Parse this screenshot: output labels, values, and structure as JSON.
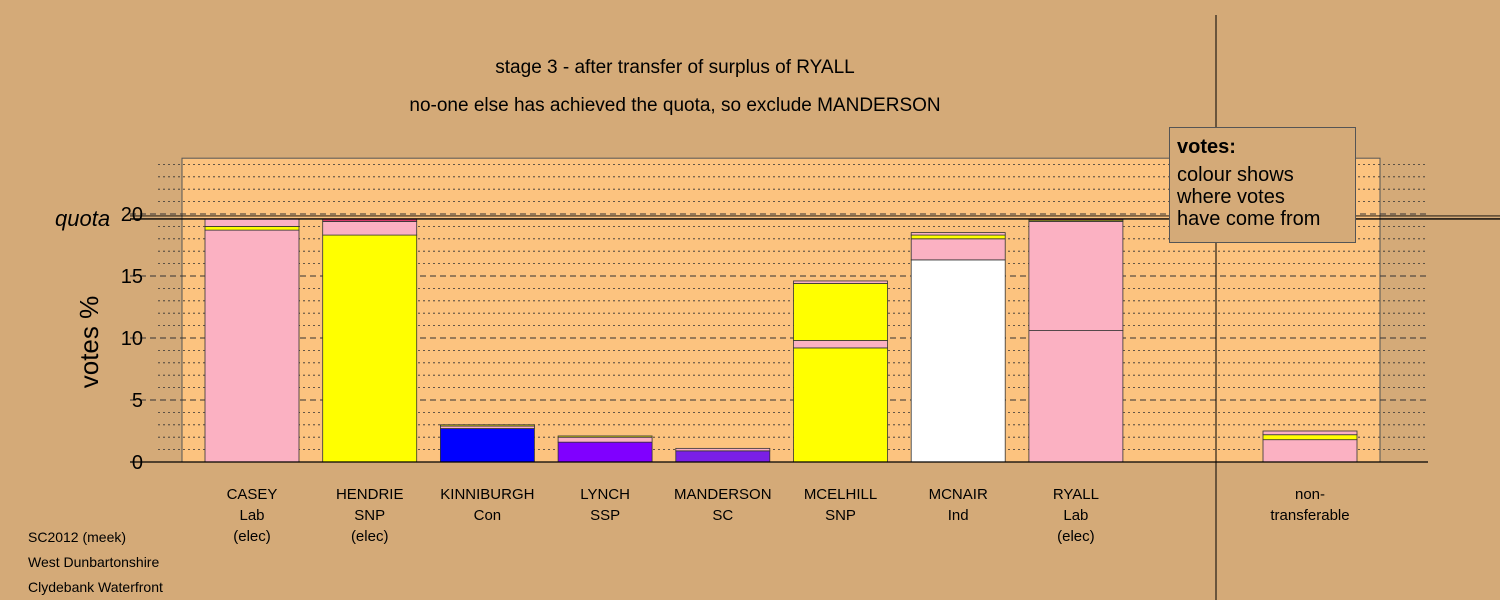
{
  "titles": {
    "line1": "stage 3 - after transfer of surplus of RYALL",
    "line2": "no-one else has achieved the quota, so exclude MANDERSON"
  },
  "legend": {
    "title": "votes:",
    "lines": [
      "colour shows",
      "where votes",
      "have come from"
    ]
  },
  "footer": [
    "SC2012 (meek)",
    "West Dunbartonshire",
    "Clydebank Waterfront"
  ],
  "colors": {
    "background": "#d4aa78",
    "plot_background": "#fcc37f",
    "Lab": "#fbb1c2",
    "SNP": "#ffff00",
    "Con": "#0000ff",
    "SSP": "#8000ff",
    "SC": "#7a1fe6",
    "Ind": "#ffffff",
    "Lab_dark": "#d93a6a"
  },
  "chart_data": {
    "type": "bar",
    "stacked": true,
    "ylabel": "votes %",
    "ylim": [
      0,
      24.5
    ],
    "yticks": [
      0,
      5,
      10,
      15,
      20
    ],
    "quota": {
      "label": "quota",
      "value": 19.6
    },
    "grid": "dotted minor, dashed major",
    "candidates": [
      {
        "lines": [
          "CASEY",
          "Lab",
          "(elec)"
        ],
        "total": 19.6,
        "segments": [
          {
            "source": "Lab",
            "value": 18.7
          },
          {
            "source": "SNP",
            "value": 0.3
          },
          {
            "source": "Lab",
            "value": 0.6
          }
        ]
      },
      {
        "lines": [
          "HENDRIE",
          "SNP",
          "(elec)"
        ],
        "total": 19.6,
        "segments": [
          {
            "source": "SNP",
            "value": 18.3
          },
          {
            "source": "Lab",
            "value": 1.1
          },
          {
            "source": "Lab_dark",
            "value": 0.2
          }
        ]
      },
      {
        "lines": [
          "KINNIBURGH",
          "Con"
        ],
        "total": 3.0,
        "segments": [
          {
            "source": "Con",
            "value": 2.7
          },
          {
            "source": "Lab",
            "value": 0.2
          },
          {
            "source": "SNP",
            "value": 0.1
          }
        ]
      },
      {
        "lines": [
          "LYNCH",
          "SSP"
        ],
        "total": 2.1,
        "segments": [
          {
            "source": "SSP",
            "value": 1.6
          },
          {
            "source": "Lab",
            "value": 0.4
          },
          {
            "source": "SNP",
            "value": 0.1
          }
        ]
      },
      {
        "lines": [
          "MANDERSON",
          "SC"
        ],
        "total": 1.1,
        "segments": [
          {
            "source": "SC",
            "value": 0.9
          },
          {
            "source": "Lab",
            "value": 0.2
          }
        ]
      },
      {
        "lines": [
          "MCELHILL",
          "SNP"
        ],
        "total": 14.6,
        "segments": [
          {
            "source": "SNP",
            "value": 9.2
          },
          {
            "source": "Lab",
            "value": 0.6
          },
          {
            "source": "SNP",
            "value": 4.6
          },
          {
            "source": "Lab",
            "value": 0.2
          }
        ]
      },
      {
        "lines": [
          "MCNAIR",
          "Ind"
        ],
        "total": 18.5,
        "segments": [
          {
            "source": "Ind",
            "value": 16.3
          },
          {
            "source": "Lab",
            "value": 1.7
          },
          {
            "source": "SNP",
            "value": 0.3
          },
          {
            "source": "Lab",
            "value": 0.2
          }
        ]
      },
      {
        "lines": [
          "RYALL",
          "Lab",
          "(elec)"
        ],
        "total": 19.6,
        "segments": [
          {
            "source": "Lab",
            "value": 10.6
          },
          {
            "source": "Lab",
            "value": 8.8
          },
          {
            "source": "SNP",
            "value": 0.1
          },
          {
            "source": "Lab_dark",
            "value": 0.1
          }
        ]
      }
    ],
    "non_transferable": {
      "lines": [
        "non-",
        "transferable"
      ],
      "total": 2.5,
      "segments": [
        {
          "source": "Lab",
          "value": 1.8
        },
        {
          "source": "SNP",
          "value": 0.4
        },
        {
          "source": "Lab",
          "value": 0.3
        }
      ]
    }
  }
}
